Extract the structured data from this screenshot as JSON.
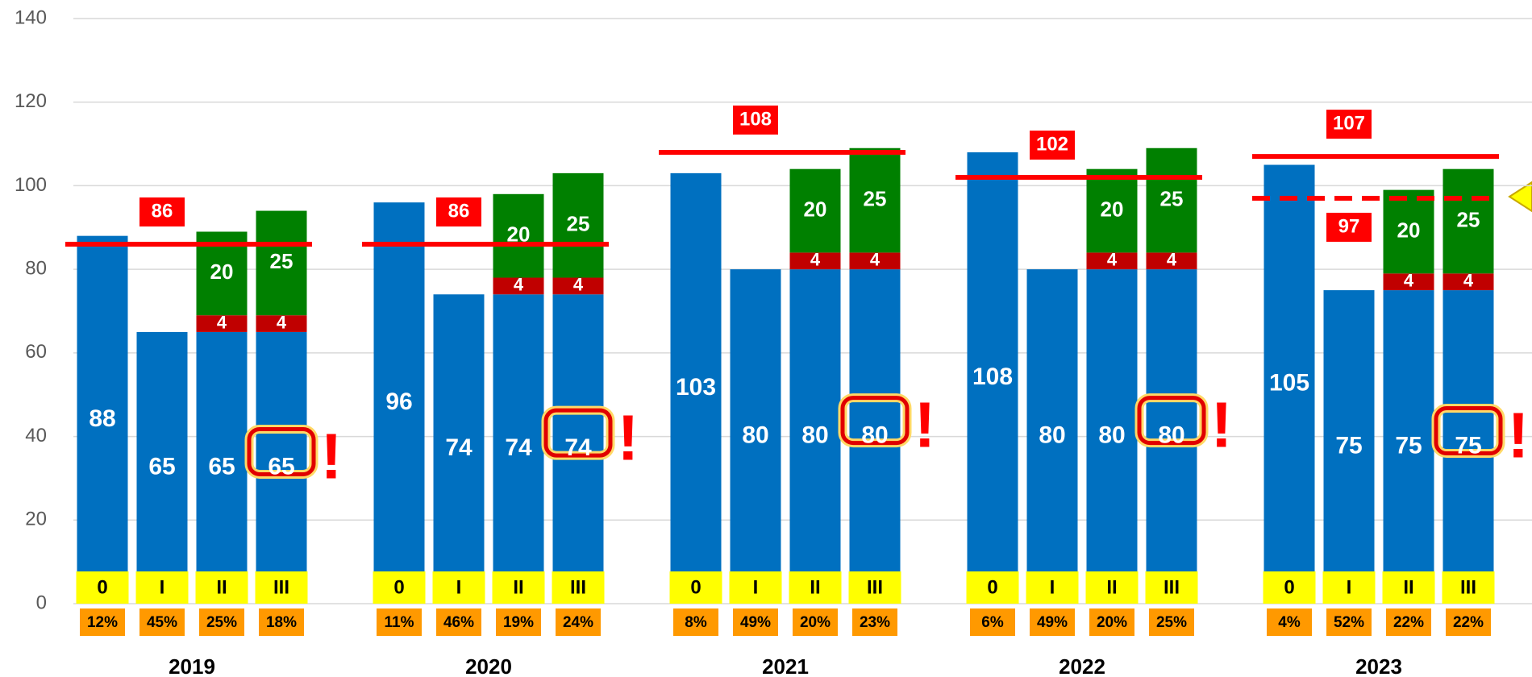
{
  "chart_data": {
    "type": "grouped-stacked-bar",
    "ylim": [
      0,
      140
    ],
    "yticks": [
      0,
      20,
      40,
      60,
      80,
      100,
      120,
      140
    ],
    "grid": true,
    "colors": {
      "base": "#0070c0",
      "mid": "#c00000",
      "top": "#008000",
      "norm": "#ff0000",
      "category": "#ffff00",
      "share": "#ff9900"
    },
    "groups": [
      {
        "name": "2019",
        "bars": [
          "0",
          "I",
          "II",
          "III"
        ],
        "base": [
          88,
          65,
          65,
          65
        ],
        "mid": [
          null,
          null,
          4,
          4
        ],
        "top": [
          null,
          null,
          20,
          25
        ],
        "shares": [
          12,
          45,
          25,
          18
        ],
        "share_labels": [
          "12%",
          "45%",
          "25%",
          "18%"
        ],
        "norm": 86
      },
      {
        "name": "2020",
        "bars": [
          "0",
          "I",
          "II",
          "III"
        ],
        "base": [
          96,
          74,
          74,
          74
        ],
        "mid": [
          null,
          null,
          4,
          4
        ],
        "top": [
          null,
          null,
          20,
          25
        ],
        "shares": [
          11,
          46,
          19,
          24
        ],
        "share_labels": [
          "11%",
          "46%",
          "19%",
          "24%"
        ],
        "norm": 86
      },
      {
        "name": "2021",
        "bars": [
          "0",
          "I",
          "II",
          "III"
        ],
        "base": [
          103,
          80,
          80,
          80
        ],
        "mid": [
          null,
          null,
          4,
          4
        ],
        "top": [
          null,
          null,
          20,
          25
        ],
        "shares": [
          8,
          49,
          20,
          23
        ],
        "share_labels": [
          "8%",
          "49%",
          "20%",
          "23%"
        ],
        "norm": 108
      },
      {
        "name": "2022",
        "bars": [
          "0",
          "I",
          "II",
          "III"
        ],
        "base": [
          108,
          80,
          80,
          80
        ],
        "mid": [
          null,
          null,
          4,
          4
        ],
        "top": [
          null,
          null,
          20,
          25
        ],
        "shares": [
          6,
          49,
          20,
          25
        ],
        "share_labels": [
          "6%",
          "49%",
          "20%",
          "25%"
        ],
        "norm": 102
      },
      {
        "name": "2023",
        "bars": [
          "0",
          "I",
          "II",
          "III"
        ],
        "base": [
          105,
          75,
          75,
          75
        ],
        "mid": [
          null,
          null,
          4,
          4
        ],
        "top": [
          null,
          null,
          20,
          25
        ],
        "shares": [
          4,
          52,
          22,
          22
        ],
        "share_labels": [
          "4%",
          "52%",
          "22%",
          "22%"
        ],
        "norm": 107,
        "norm_dashed": 97
      }
    ]
  }
}
